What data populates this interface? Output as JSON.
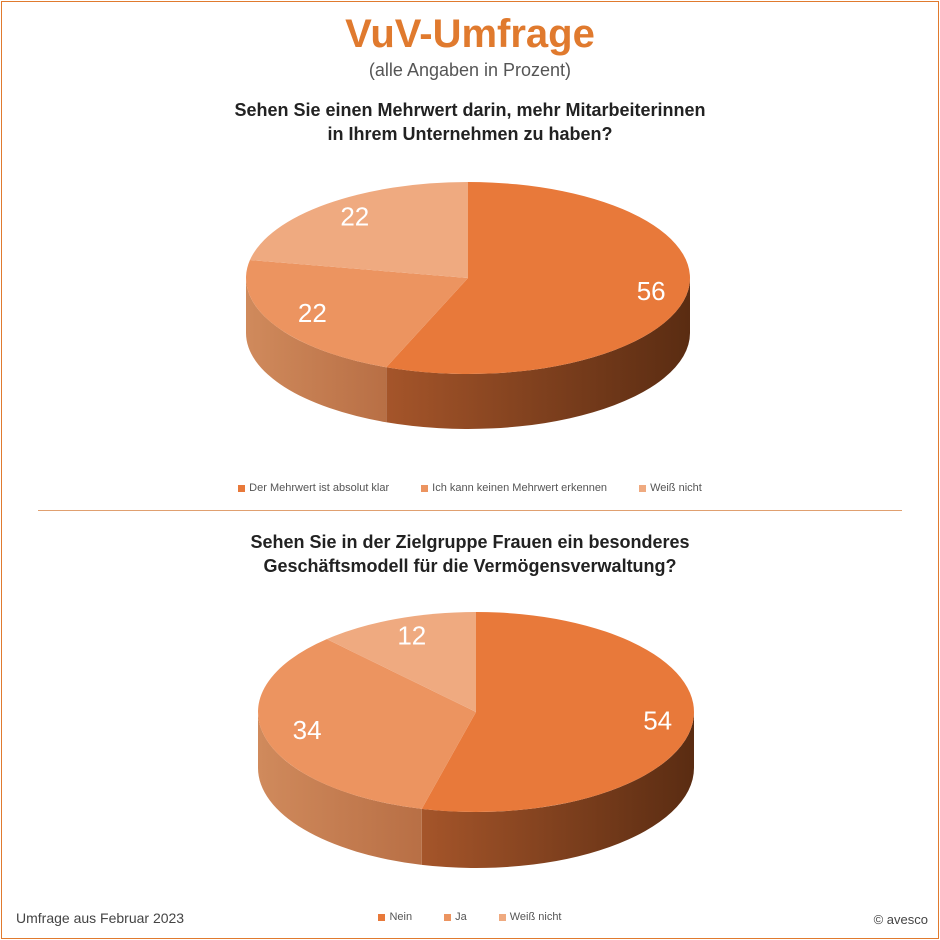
{
  "title": "VuV-Umfrage",
  "subtitle": "(alle Angaben in Prozent)",
  "footer_left": "Umfrage aus Februar 2023",
  "footer_right": "© avesco",
  "chart_data": [
    {
      "type": "pie",
      "title": "Sehen Sie einen Mehrwert darin, mehr Mitarbeiterinnen\nin Ihrem Unternehmen zu haben?",
      "categories": [
        "Der Mehrwert ist absolut klar",
        "Ich kann keinen Mehrwert erkennen",
        "Weiß nicht"
      ],
      "values": [
        56,
        22,
        22
      ],
      "labels": [
        "56",
        "22",
        "22"
      ],
      "colors": [
        "#E8793A",
        "#EC9460",
        "#EFAA80"
      ],
      "legend": "bottom",
      "style": "3d"
    },
    {
      "type": "pie",
      "title": "Sehen Sie in der Zielgruppe Frauen ein besonderes\nGeschäftsmodell für die Vermögensverwaltung?",
      "categories": [
        "Nein",
        "Ja",
        "Weiß nicht"
      ],
      "values": [
        54,
        34,
        12
      ],
      "labels": [
        "54",
        "34",
        "12"
      ],
      "colors": [
        "#E8793A",
        "#EC9460",
        "#EFAA80"
      ],
      "legend": "bottom",
      "style": "3d"
    }
  ]
}
